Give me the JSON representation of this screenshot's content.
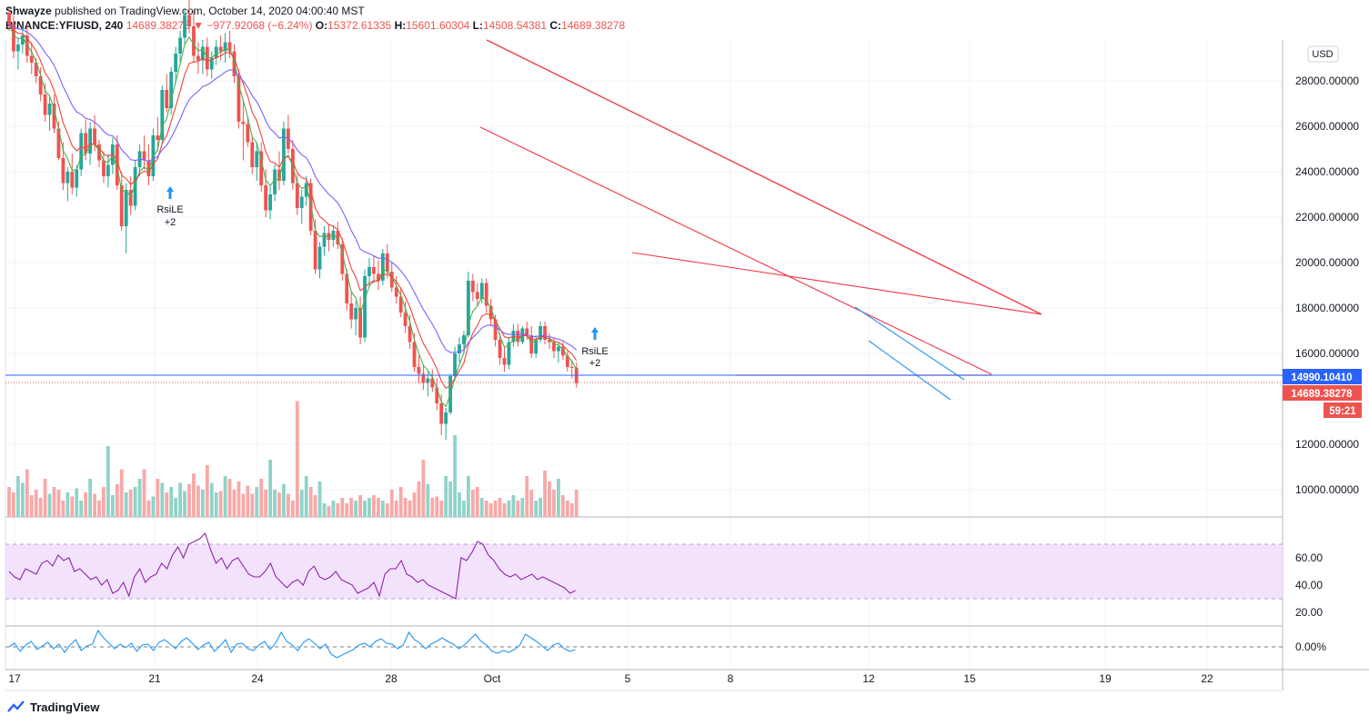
{
  "header": {
    "publisher": "Shwayze",
    "published_text": "published on TradingView.com, October 14, 2020 04:00:40 MST",
    "symbol": "BINANCE:YFIUSD, 240",
    "last": "14689.38278",
    "change": "−977.92068 (−6.24%)",
    "o_label": "O:",
    "o_value": "15372.61335",
    "h_label": "H:",
    "h_value": "15601.60304",
    "l_label": "L:",
    "l_value": "14508.54381",
    "c_label": "C:",
    "c_value": "14689.38278"
  },
  "price_scale": {
    "currency_button": "USD",
    "labels": [
      "28000.00000",
      "26000.00000",
      "24000.00000",
      "22000.00000",
      "20000.00000",
      "18000.00000",
      "16000.00000",
      "12000.00000",
      "10000.00000"
    ],
    "blue_price_tag": "14990.10410",
    "red_price_tag": "14689.38278",
    "countdown": "59:21"
  },
  "rsi_scale": {
    "labels": [
      "60.00",
      "40.00",
      "20.00"
    ]
  },
  "osc_scale": {
    "labels": [
      "0.00%"
    ]
  },
  "time_axis": {
    "labels": [
      "17",
      "21",
      "24",
      "28",
      "Oct",
      "5",
      "8",
      "12",
      "15",
      "19",
      "22"
    ]
  },
  "signals": [
    {
      "text": "RsiLE",
      "sub": "+2"
    },
    {
      "text": "RsiLE",
      "sub": "+2"
    }
  ],
  "footer": {
    "brand": "TradingView"
  },
  "colors": {
    "up": "#26a69a",
    "down": "#ef5350",
    "ema_fast": "#4caf50",
    "ema_mid": "#f44336",
    "ema_slow": "#7b61ff",
    "rsi": "#8e24aa",
    "rsi_band": "#f3e2fb",
    "osc": "#2196f3",
    "trend": "#f23645",
    "channel": "#2196f3",
    "current_line": "#2962ff"
  },
  "chart_data": {
    "type": "candlestick",
    "ylim": [
      8800,
      29800
    ],
    "x_labels": [
      "17",
      "21",
      "24",
      "28",
      "Oct",
      "5",
      "8",
      "12",
      "15",
      "19",
      "22"
    ],
    "candles": [
      [
        31000,
        31200,
        30200,
        30500
      ],
      [
        30500,
        30900,
        29000,
        29300
      ],
      [
        29300,
        29900,
        28500,
        29600
      ],
      [
        29600,
        30400,
        29200,
        30000
      ],
      [
        30000,
        30500,
        28800,
        29100
      ],
      [
        29100,
        29700,
        28300,
        28800
      ],
      [
        28800,
        29000,
        27900,
        28200
      ],
      [
        28200,
        28600,
        27100,
        27400
      ],
      [
        27400,
        27900,
        26200,
        26500
      ],
      [
        26500,
        27300,
        25800,
        27000
      ],
      [
        27000,
        27400,
        25700,
        25900
      ],
      [
        25900,
        26200,
        24500,
        24600
      ],
      [
        24600,
        25300,
        23200,
        23500
      ],
      [
        23500,
        24200,
        22700,
        24000
      ],
      [
        24000,
        24800,
        23000,
        23300
      ],
      [
        23300,
        24300,
        22900,
        24100
      ],
      [
        24100,
        25900,
        23800,
        25700
      ],
      [
        25700,
        26300,
        24500,
        24800
      ],
      [
        24800,
        26200,
        24300,
        25900
      ],
      [
        25900,
        26500,
        24900,
        25200
      ],
      [
        25200,
        25400,
        24200,
        24500
      ],
      [
        24500,
        24900,
        23500,
        23800
      ],
      [
        23800,
        24800,
        23300,
        24300
      ],
      [
        24300,
        25500,
        23900,
        25200
      ],
      [
        25200,
        25600,
        23200,
        23400
      ],
      [
        23400,
        24000,
        21400,
        21600
      ],
      [
        21600,
        23500,
        20400,
        23200
      ],
      [
        23200,
        23800,
        22100,
        22500
      ],
      [
        22500,
        24500,
        22300,
        24200
      ],
      [
        24200,
        25200,
        23800,
        24900
      ],
      [
        24900,
        25600,
        24100,
        24500
      ],
      [
        24500,
        25200,
        23400,
        23800
      ],
      [
        23800,
        25900,
        23600,
        25600
      ],
      [
        25600,
        26400,
        24900,
        25400
      ],
      [
        25400,
        27800,
        25200,
        27600
      ],
      [
        27600,
        28300,
        26600,
        26800
      ],
      [
        26800,
        28600,
        26500,
        28400
      ],
      [
        28400,
        29500,
        27900,
        29200
      ],
      [
        29200,
        30200,
        28800,
        29900
      ],
      [
        29900,
        31200,
        29600,
        30900
      ],
      [
        30900,
        31600,
        30100,
        30400
      ],
      [
        30400,
        31100,
        28800,
        29100
      ],
      [
        29100,
        29700,
        28300,
        28900
      ],
      [
        28900,
        29800,
        28300,
        29500
      ],
      [
        29500,
        29900,
        28200,
        28500
      ],
      [
        28500,
        29300,
        28100,
        29000
      ],
      [
        29000,
        29800,
        28700,
        29500
      ],
      [
        29500,
        30000,
        28900,
        29300
      ],
      [
        29300,
        30100,
        28800,
        29700
      ],
      [
        29700,
        30200,
        29000,
        29300
      ],
      [
        29300,
        29600,
        27900,
        28200
      ],
      [
        28200,
        28500,
        25900,
        26200
      ],
      [
        26200,
        27200,
        24500,
        26100
      ],
      [
        26100,
        26400,
        25100,
        25300
      ],
      [
        25300,
        25600,
        23900,
        24200
      ],
      [
        24200,
        25300,
        23600,
        24900
      ],
      [
        24900,
        25300,
        23100,
        23400
      ],
      [
        23400,
        24100,
        22000,
        22300
      ],
      [
        22300,
        23400,
        21900,
        23000
      ],
      [
        23000,
        24300,
        22700,
        24100
      ],
      [
        24100,
        24900,
        23200,
        23600
      ],
      [
        23600,
        26200,
        23400,
        25900
      ],
      [
        25900,
        26500,
        24800,
        25000
      ],
      [
        25000,
        25400,
        23200,
        23500
      ],
      [
        23500,
        23900,
        22100,
        22400
      ],
      [
        22400,
        23200,
        21700,
        22900
      ],
      [
        22900,
        23800,
        22500,
        23500
      ],
      [
        23500,
        23700,
        21200,
        21400
      ],
      [
        21400,
        21900,
        19500,
        19700
      ],
      [
        19700,
        20900,
        19300,
        20700
      ],
      [
        20700,
        21600,
        20300,
        21300
      ],
      [
        21300,
        21700,
        20500,
        21000
      ],
      [
        21000,
        21600,
        20700,
        21400
      ],
      [
        21400,
        21800,
        20600,
        20800
      ],
      [
        20800,
        21100,
        19200,
        19500
      ],
      [
        19500,
        19700,
        17900,
        18200
      ],
      [
        18200,
        18700,
        17100,
        17500
      ],
      [
        17500,
        18300,
        16800,
        18000
      ],
      [
        18000,
        18500,
        16400,
        16700
      ],
      [
        16700,
        19700,
        16500,
        19400
      ],
      [
        19400,
        20200,
        18900,
        19800
      ],
      [
        19800,
        20300,
        19100,
        19500
      ],
      [
        19500,
        20100,
        18800,
        19200
      ],
      [
        19200,
        20600,
        19000,
        20400
      ],
      [
        20400,
        20800,
        19300,
        19600
      ],
      [
        19600,
        20000,
        18700,
        18900
      ],
      [
        18900,
        19400,
        18200,
        18500
      ],
      [
        18500,
        18900,
        17600,
        17800
      ],
      [
        17800,
        18300,
        16900,
        17200
      ],
      [
        17200,
        17700,
        16200,
        16500
      ],
      [
        16500,
        16900,
        15200,
        15400
      ],
      [
        15400,
        15900,
        14700,
        15100
      ],
      [
        15100,
        15500,
        14400,
        14700
      ],
      [
        14700,
        15200,
        14100,
        14900
      ],
      [
        14900,
        15300,
        14300,
        14500
      ],
      [
        14500,
        14900,
        13500,
        13800
      ],
      [
        13800,
        14200,
        12400,
        12900
      ],
      [
        12900,
        13600,
        12200,
        13400
      ],
      [
        13400,
        15100,
        13300,
        15000
      ],
      [
        15000,
        16300,
        14800,
        16000
      ],
      [
        16000,
        16700,
        15600,
        16400
      ],
      [
        16400,
        17000,
        16000,
        16800
      ],
      [
        16800,
        19600,
        16700,
        19200
      ],
      [
        19200,
        19500,
        18300,
        18700
      ],
      [
        18700,
        19100,
        18100,
        18400
      ],
      [
        18400,
        19300,
        18200,
        19100
      ],
      [
        19100,
        19300,
        17800,
        18100
      ],
      [
        18100,
        18400,
        17200,
        17500
      ],
      [
        17500,
        17700,
        16300,
        16600
      ],
      [
        16600,
        16900,
        15500,
        15800
      ],
      [
        15800,
        16300,
        15200,
        15500
      ],
      [
        15500,
        16700,
        15300,
        16500
      ],
      [
        16500,
        17300,
        16300,
        17000
      ],
      [
        17000,
        17300,
        16300,
        16500
      ],
      [
        16500,
        17200,
        16400,
        17100
      ],
      [
        17100,
        17400,
        16600,
        16800
      ],
      [
        16800,
        17200,
        15800,
        16000
      ],
      [
        16000,
        16800,
        15800,
        16600
      ],
      [
        16600,
        17400,
        16500,
        17200
      ],
      [
        17200,
        17400,
        16400,
        16600
      ],
      [
        16600,
        16900,
        16200,
        16500
      ],
      [
        16500,
        16700,
        15800,
        16100
      ],
      [
        16100,
        16500,
        15600,
        16300
      ],
      [
        16300,
        16500,
        15700,
        15900
      ],
      [
        15900,
        16100,
        15200,
        15400
      ],
      [
        15400,
        15700,
        14900,
        15370
      ],
      [
        15370,
        15600,
        14500,
        14689
      ]
    ],
    "volumes": [
      0.22,
      0.18,
      0.3,
      0.25,
      0.35,
      0.16,
      0.2,
      0.14,
      0.28,
      0.17,
      0.22,
      0.2,
      0.12,
      0.18,
      0.15,
      0.21,
      0.12,
      0.18,
      0.28,
      0.17,
      0.12,
      0.22,
      0.52,
      0.16,
      0.24,
      0.35,
      0.18,
      0.2,
      0.22,
      0.28,
      0.35,
      0.12,
      0.15,
      0.28,
      0.25,
      0.18,
      0.22,
      0.14,
      0.25,
      0.19,
      0.24,
      0.32,
      0.23,
      0.2,
      0.38,
      0.25,
      0.18,
      0.19,
      0.3,
      0.28,
      0.2,
      0.26,
      0.17,
      0.23,
      0.17,
      0.22,
      0.28,
      0.2,
      0.42,
      0.2,
      0.18,
      0.24,
      0.17,
      0.12,
      0.85,
      0.2,
      0.3,
      0.22,
      0.16,
      0.26,
      0.1,
      0.08,
      0.12,
      0.1,
      0.14,
      0.1,
      0.14,
      0.12,
      0.16,
      0.12,
      0.14,
      0.16,
      0.14,
      0.12,
      0.1,
      0.2,
      0.12,
      0.22,
      0.14,
      0.12,
      0.18,
      0.26,
      0.42,
      0.24,
      0.14,
      0.15,
      0.12,
      0.3,
      0.26,
      0.6,
      0.18,
      0.12,
      0.3,
      0.2,
      0.22,
      0.14,
      0.12,
      0.1,
      0.12,
      0.14,
      0.1,
      0.12,
      0.16,
      0.12,
      0.14,
      0.3,
      0.2,
      0.12,
      0.14,
      0.34,
      0.26,
      0.2,
      0.28,
      0.16,
      0.12,
      0.1,
      0.2
    ],
    "rsi": [
      50,
      46,
      44,
      52,
      50,
      48,
      56,
      58,
      54,
      62,
      58,
      60,
      50,
      52,
      48,
      44,
      46,
      40,
      44,
      34,
      36,
      42,
      32,
      46,
      52,
      42,
      46,
      48,
      56,
      52,
      62,
      68,
      60,
      70,
      72,
      74,
      78,
      66,
      56,
      60,
      52,
      58,
      60,
      54,
      48,
      46,
      46,
      50,
      56,
      46,
      42,
      38,
      42,
      44,
      40,
      50,
      54,
      46,
      44,
      46,
      50,
      44,
      42,
      40,
      34,
      36,
      38,
      42,
      32,
      48,
      52,
      52,
      58,
      48,
      46,
      42,
      44,
      40,
      38,
      36,
      34,
      32,
      30,
      60,
      58,
      64,
      72,
      70,
      62,
      58,
      52,
      48,
      46,
      48,
      44,
      46,
      48,
      44,
      46,
      44,
      42,
      40,
      38,
      34,
      36
    ],
    "osc": [
      0.0,
      0.4,
      -0.5,
      0.2,
      0.6,
      -0.3,
      0.1,
      0.5,
      -0.2,
      0.3,
      -0.6,
      0.2,
      0.8,
      -0.4,
      0.1,
      0.3,
      1.8,
      1.0,
      0.4,
      -0.2,
      0.3,
      -0.1,
      0.4,
      -0.5,
      0.2,
      0.3,
      -0.4,
      0.5,
      0.8,
      0.3,
      -0.2,
      0.6,
      1.0,
      0.4,
      -0.3,
      0.2,
      0.5,
      -0.5,
      0.1,
      0.8,
      -0.6,
      0.3,
      0.4,
      -0.2,
      -0.4,
      0.2,
      0.6,
      -0.3,
      0.4,
      1.6,
      0.6,
      0.2,
      -0.4,
      0.5,
      0.9,
      0.4,
      -0.2,
      0.3,
      -0.8,
      -1.2,
      -0.9,
      -0.6,
      -0.3,
      0.2,
      0.4,
      0.0,
      0.6,
      0.9,
      0.4,
      0.3,
      -0.2,
      0.2,
      1.6,
      0.8,
      0.4,
      -0.2,
      0.3,
      0.6,
      1.0,
      0.6,
      0.3,
      -0.2,
      0.2,
      0.8,
      1.4,
      0.6,
      0.2,
      -0.5,
      -0.7,
      -0.4,
      -0.6,
      -0.3,
      0.2,
      1.4,
      1.0,
      0.6,
      0.1,
      -0.4,
      0.2,
      0.4,
      -0.2,
      -0.5,
      -0.3
    ]
  }
}
